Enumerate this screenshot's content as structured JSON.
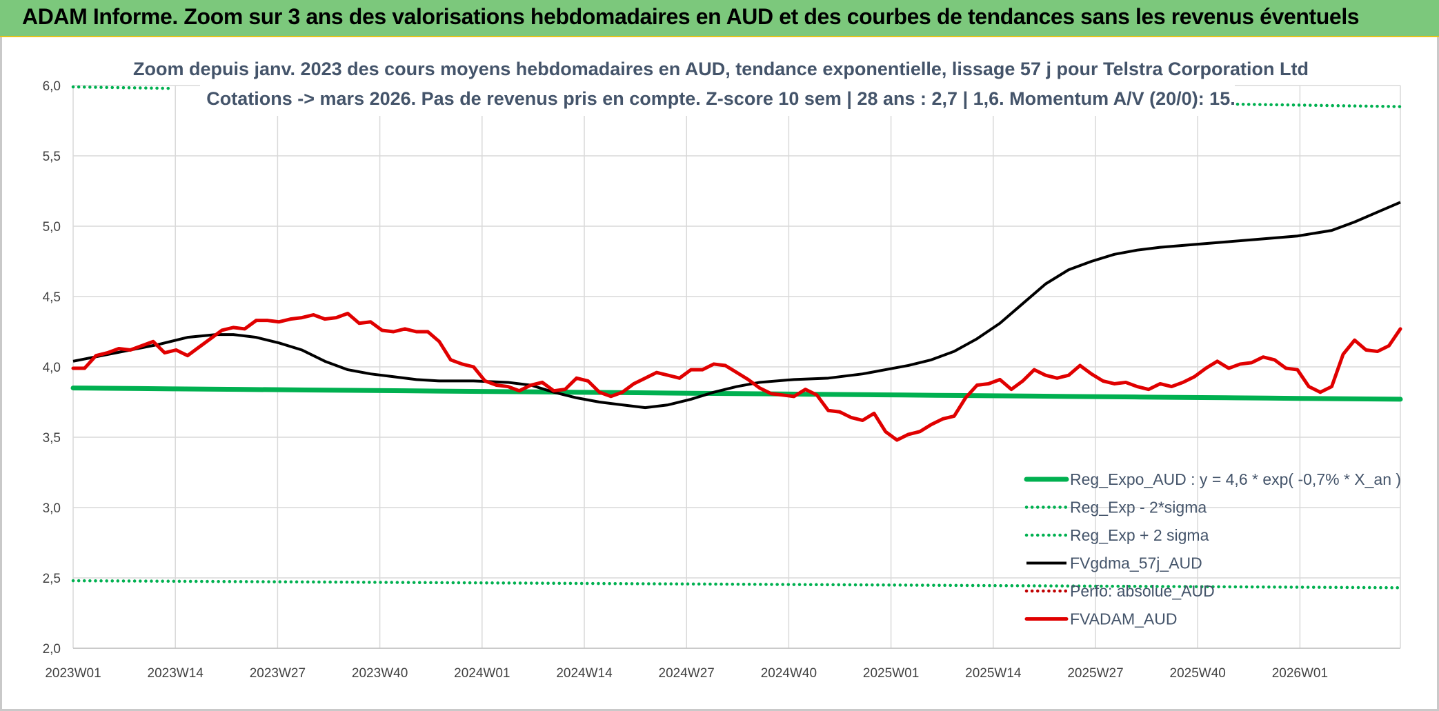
{
  "header": {
    "title": "ADAM Informe. Zoom sur 3 ans des valorisations hebdomadaires en AUD et des courbes de tendances sans les revenus éventuels"
  },
  "colors": {
    "header_bg": "#7cc87c",
    "reg_expo": "#00b050",
    "sigma_bands": "#00b050",
    "fvgdma": "#000000",
    "perfo": "#c00000",
    "fvadam": "#e00000",
    "title_text": "#44546a"
  },
  "chart_data": {
    "type": "line",
    "title_lines": [
      "Zoom depuis janv. 2023 des cours moyens hebdomadaires en AUD, tendance exponentielle, lissage 57 j pour Telstra Corporation Ltd",
      "Cotations -> mars 2026. Pas de revenus pris en compte. Z-score 10 sem | 28 ans : 2,7 | 1,6. Momentum A/V (20/0): 15."
    ],
    "x_tick_labels": [
      "2023W01",
      "2023W14",
      "2023W27",
      "2023W40",
      "2024W01",
      "2024W14",
      "2024W27",
      "2024W40",
      "2025W01",
      "2025W14",
      "2025W27",
      "2025W40",
      "2026W01"
    ],
    "x_tick_index": [
      0,
      13,
      26,
      39,
      52,
      65,
      78,
      91,
      104,
      117,
      130,
      143,
      156
    ],
    "x_count": 170,
    "y_ticks": [
      "2,0",
      "2,5",
      "3,0",
      "3,5",
      "4,0",
      "4,5",
      "5,0",
      "5,5",
      "6,0"
    ],
    "ylim": [
      2.0,
      6.0
    ],
    "grid": true,
    "legend_position": "bottom-right",
    "series": [
      {
        "name": "Reg_Expo_AUD : y = 4,6 * exp( -0,7% *  X_an )",
        "style": "solid-thick",
        "color": "#00b050",
        "start": 3.85,
        "end": 3.77
      },
      {
        "name": "Reg_Exp - 2*sigma",
        "style": "dotted",
        "color": "#00b050",
        "start": 2.48,
        "end": 2.43
      },
      {
        "name": "Reg_Exp + 2 sigma",
        "style": "dotted",
        "color": "#00b050",
        "start": 5.99,
        "end": 5.85,
        "hidden_ranges": [
          [
            21,
            150
          ]
        ]
      },
      {
        "name": "FVgdma_57j_AUD",
        "style": "solid",
        "color": "#000000",
        "points": [
          [
            0,
            4.04
          ],
          [
            5,
            4.08
          ],
          [
            10,
            4.12
          ],
          [
            15,
            4.16
          ],
          [
            20,
            4.21
          ],
          [
            25,
            4.23
          ],
          [
            28,
            4.23
          ],
          [
            32,
            4.21
          ],
          [
            36,
            4.17
          ],
          [
            40,
            4.12
          ],
          [
            44,
            4.04
          ],
          [
            48,
            3.98
          ],
          [
            52,
            3.95
          ],
          [
            56,
            3.93
          ],
          [
            60,
            3.91
          ],
          [
            64,
            3.9
          ],
          [
            70,
            3.9
          ],
          [
            76,
            3.89
          ],
          [
            80,
            3.87
          ],
          [
            84,
            3.82
          ],
          [
            88,
            3.78
          ],
          [
            92,
            3.75
          ],
          [
            96,
            3.73
          ],
          [
            100,
            3.71
          ],
          [
            104,
            3.73
          ],
          [
            108,
            3.77
          ],
          [
            112,
            3.82
          ],
          [
            116,
            3.86
          ],
          [
            120,
            3.89
          ],
          [
            126,
            3.91
          ],
          [
            132,
            3.92
          ],
          [
            138,
            3.95
          ],
          [
            142,
            3.98
          ],
          [
            146,
            4.01
          ],
          [
            150,
            4.05
          ],
          [
            154,
            4.11
          ],
          [
            158,
            4.2
          ],
          [
            162,
            4.31
          ],
          [
            166,
            4.45
          ],
          [
            170,
            4.59
          ],
          [
            174,
            4.69
          ],
          [
            178,
            4.75
          ],
          [
            182,
            4.8
          ],
          [
            186,
            4.83
          ],
          [
            190,
            4.85
          ],
          [
            196,
            4.87
          ],
          [
            202,
            4.89
          ],
          [
            208,
            4.91
          ],
          [
            214,
            4.93
          ],
          [
            220,
            4.97
          ],
          [
            224,
            5.03
          ],
          [
            228,
            5.1
          ],
          [
            232,
            5.17
          ]
        ]
      },
      {
        "name": "Perfo: absolue_AUD",
        "style": "dotted",
        "color": "#c00000",
        "points": []
      },
      {
        "name": "FVADAM_AUD",
        "style": "solid-thick",
        "color": "#e00000",
        "points": [
          [
            0,
            3.99
          ],
          [
            2,
            3.99
          ],
          [
            4,
            4.08
          ],
          [
            6,
            4.1
          ],
          [
            8,
            4.13
          ],
          [
            10,
            4.12
          ],
          [
            12,
            4.15
          ],
          [
            14,
            4.18
          ],
          [
            16,
            4.1
          ],
          [
            18,
            4.12
          ],
          [
            20,
            4.08
          ],
          [
            22,
            4.14
          ],
          [
            24,
            4.2
          ],
          [
            26,
            4.26
          ],
          [
            28,
            4.28
          ],
          [
            30,
            4.27
          ],
          [
            32,
            4.33
          ],
          [
            34,
            4.33
          ],
          [
            36,
            4.32
          ],
          [
            38,
            4.34
          ],
          [
            40,
            4.35
          ],
          [
            42,
            4.37
          ],
          [
            44,
            4.34
          ],
          [
            46,
            4.35
          ],
          [
            48,
            4.38
          ],
          [
            50,
            4.31
          ],
          [
            52,
            4.32
          ],
          [
            54,
            4.26
          ],
          [
            56,
            4.25
          ],
          [
            58,
            4.27
          ],
          [
            60,
            4.25
          ],
          [
            62,
            4.25
          ],
          [
            64,
            4.18
          ],
          [
            66,
            4.05
          ],
          [
            68,
            4.02
          ],
          [
            70,
            4.0
          ],
          [
            72,
            3.9
          ],
          [
            74,
            3.87
          ],
          [
            76,
            3.86
          ],
          [
            78,
            3.83
          ],
          [
            80,
            3.87
          ],
          [
            82,
            3.89
          ],
          [
            84,
            3.83
          ],
          [
            86,
            3.84
          ],
          [
            88,
            3.92
          ],
          [
            90,
            3.9
          ],
          [
            92,
            3.82
          ],
          [
            94,
            3.79
          ],
          [
            96,
            3.82
          ],
          [
            98,
            3.88
          ],
          [
            100,
            3.92
          ],
          [
            102,
            3.96
          ],
          [
            104,
            3.94
          ],
          [
            106,
            3.92
          ],
          [
            108,
            3.98
          ],
          [
            110,
            3.98
          ],
          [
            112,
            4.02
          ],
          [
            114,
            4.01
          ],
          [
            116,
            3.96
          ],
          [
            118,
            3.91
          ],
          [
            120,
            3.85
          ],
          [
            122,
            3.81
          ],
          [
            124,
            3.8
          ],
          [
            126,
            3.79
          ],
          [
            128,
            3.84
          ],
          [
            130,
            3.8
          ],
          [
            132,
            3.69
          ],
          [
            134,
            3.68
          ],
          [
            136,
            3.64
          ],
          [
            138,
            3.62
          ],
          [
            140,
            3.67
          ],
          [
            142,
            3.54
          ],
          [
            144,
            3.48
          ],
          [
            146,
            3.52
          ],
          [
            148,
            3.54
          ],
          [
            150,
            3.59
          ],
          [
            152,
            3.63
          ],
          [
            154,
            3.65
          ],
          [
            156,
            3.78
          ],
          [
            158,
            3.87
          ],
          [
            160,
            3.88
          ],
          [
            162,
            3.91
          ],
          [
            164,
            3.84
          ],
          [
            166,
            3.9
          ],
          [
            168,
            3.98
          ],
          [
            170,
            3.94
          ],
          [
            172,
            3.92
          ],
          [
            174,
            3.94
          ],
          [
            176,
            4.01
          ],
          [
            178,
            3.95
          ],
          [
            180,
            3.9
          ],
          [
            182,
            3.88
          ],
          [
            184,
            3.89
          ],
          [
            186,
            3.86
          ],
          [
            188,
            3.84
          ],
          [
            190,
            3.88
          ],
          [
            192,
            3.86
          ],
          [
            194,
            3.89
          ],
          [
            196,
            3.93
          ],
          [
            198,
            3.99
          ],
          [
            200,
            4.04
          ],
          [
            202,
            3.99
          ],
          [
            204,
            4.02
          ],
          [
            206,
            4.03
          ],
          [
            208,
            4.07
          ],
          [
            210,
            4.05
          ],
          [
            212,
            3.99
          ],
          [
            214,
            3.98
          ],
          [
            216,
            3.86
          ],
          [
            218,
            3.82
          ],
          [
            220,
            3.86
          ],
          [
            222,
            4.09
          ],
          [
            224,
            4.19
          ],
          [
            226,
            4.12
          ],
          [
            228,
            4.11
          ],
          [
            230,
            4.15
          ],
          [
            232,
            4.27
          ]
        ]
      }
    ]
  }
}
